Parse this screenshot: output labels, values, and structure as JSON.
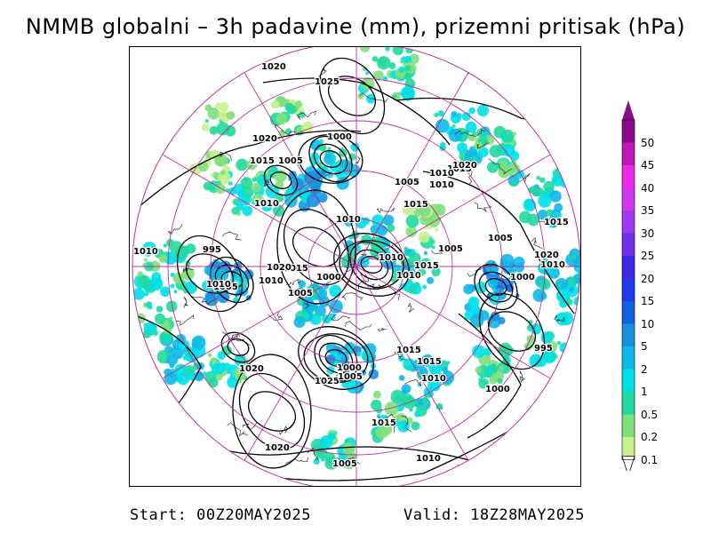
{
  "title": "NMMB globalni – 3h padavine (mm), prizemni pritisak (hPa)",
  "footer": {
    "start": "Start: 00Z20MAY2025",
    "valid": "Valid: 18Z28MAY2025"
  },
  "legend": {
    "levels": [
      {
        "value": "0.1",
        "color": "#c8f08c"
      },
      {
        "value": "0.2",
        "color": "#7fe07a"
      },
      {
        "value": "0.5",
        "color": "#22d8a0"
      },
      {
        "value": "1",
        "color": "#00e0e8"
      },
      {
        "value": "2",
        "color": "#10b8e8"
      },
      {
        "value": "5",
        "color": "#1890e0"
      },
      {
        "value": "10",
        "color": "#1060e0"
      },
      {
        "value": "15",
        "color": "#2038e8"
      },
      {
        "value": "20",
        "color": "#4028e0"
      },
      {
        "value": "25",
        "color": "#7030e8"
      },
      {
        "value": "30",
        "color": "#a038f0"
      },
      {
        "value": "35",
        "color": "#d038f0"
      },
      {
        "value": "40",
        "color": "#f028e8"
      },
      {
        "value": "45",
        "color": "#c018b8"
      },
      {
        "value": "50",
        "color": "#8a0a8a"
      }
    ]
  },
  "map": {
    "isobar_labels": [
      {
        "text": "1020",
        "lon": 0,
        "lat": 1
      },
      {
        "text": "1025"
      },
      {
        "text": "1000"
      },
      {
        "text": "1020"
      },
      {
        "text": "1015"
      },
      {
        "text": "1005"
      },
      {
        "text": "1010"
      },
      {
        "text": "1015"
      },
      {
        "text": "1010"
      },
      {
        "text": "1005"
      },
      {
        "text": "1010"
      },
      {
        "text": "1015"
      },
      {
        "text": "1010"
      },
      {
        "text": "1020"
      },
      {
        "text": "1005"
      },
      {
        "text": "1010"
      },
      {
        "text": "1015"
      },
      {
        "text": "1010"
      },
      {
        "text": "1015"
      },
      {
        "text": "1005"
      },
      {
        "text": "1015"
      },
      {
        "text": "1010"
      },
      {
        "text": "1020"
      },
      {
        "text": "1000"
      },
      {
        "text": "1005"
      },
      {
        "text": "995"
      },
      {
        "text": "1005"
      },
      {
        "text": "1010"
      },
      {
        "text": "1020"
      },
      {
        "text": "1010"
      },
      {
        "text": "1000"
      },
      {
        "text": "995"
      },
      {
        "text": "1020"
      },
      {
        "text": "1025"
      },
      {
        "text": "1000"
      },
      {
        "text": "1005"
      },
      {
        "text": "1015"
      },
      {
        "text": "1015"
      },
      {
        "text": "1010"
      },
      {
        "text": "1000"
      },
      {
        "text": "1015"
      },
      {
        "text": "1020"
      },
      {
        "text": "1005"
      },
      {
        "text": "1010"
      },
      {
        "text": "1010"
      }
    ]
  }
}
